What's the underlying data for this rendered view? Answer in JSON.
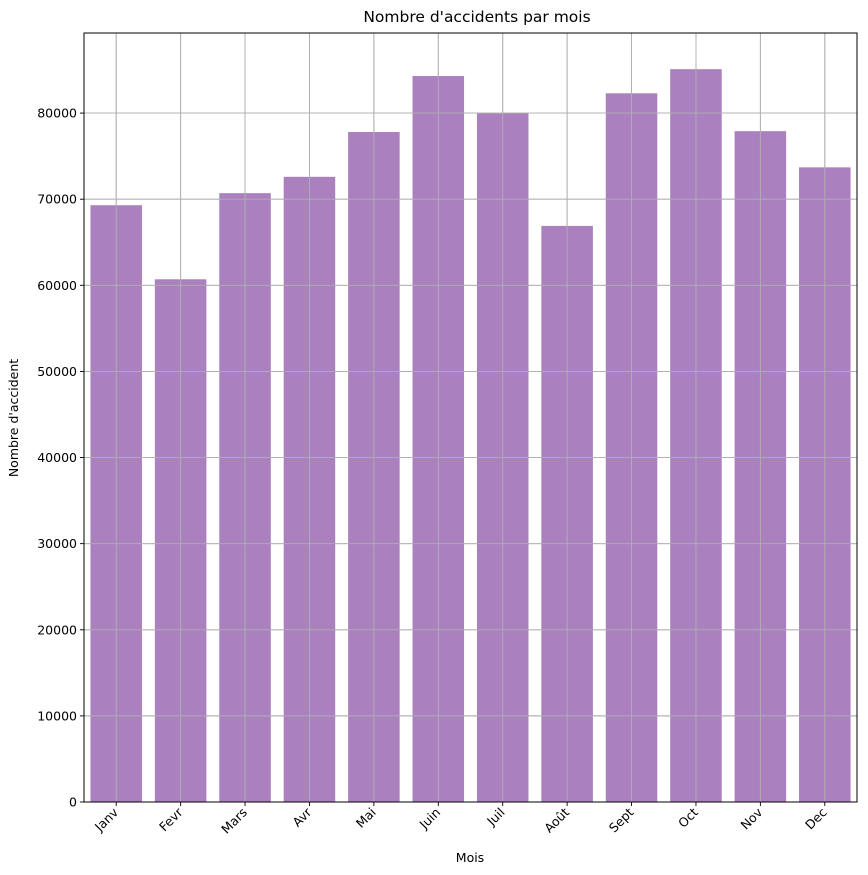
{
  "chart_data": {
    "type": "bar",
    "title": "Nombre d'accidents par mois",
    "xlabel": "Mois",
    "ylabel": "Nombre d'accident",
    "categories": [
      "Janv",
      "Fevr",
      "Mars",
      "Avr",
      "Mai",
      "Juin",
      "Juil",
      "Août",
      "Sept",
      "Oct",
      "Nov",
      "Dec"
    ],
    "values": [
      69300,
      60700,
      70700,
      72600,
      77800,
      84300,
      80000,
      66900,
      82300,
      85100,
      77900,
      73700
    ],
    "ylim": [
      0,
      89300
    ],
    "yticks": [
      0,
      10000,
      20000,
      30000,
      40000,
      50000,
      60000,
      70000,
      80000
    ],
    "grid": true,
    "bar_color": "#aa80be",
    "grid_color": "#b0b0b0"
  }
}
